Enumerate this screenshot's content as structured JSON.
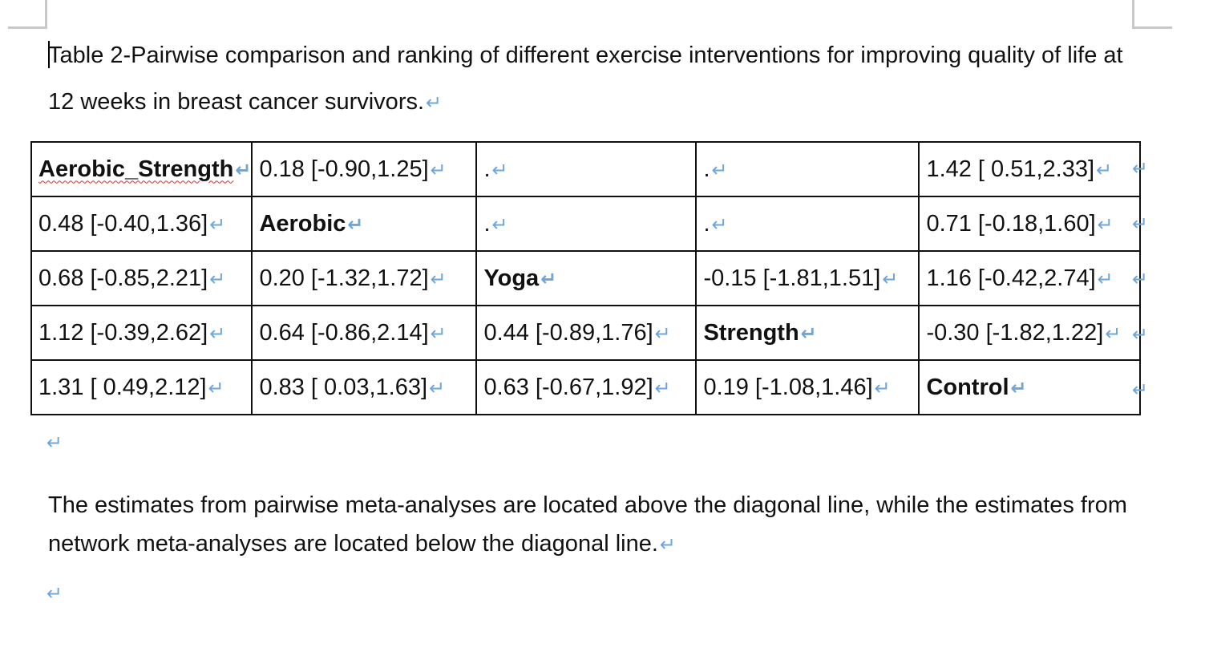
{
  "caption": {
    "text": "Table 2-Pairwise comparison and ranking of different exercise interventions for improving quality of life at 12 weeks in breast cancer survivors."
  },
  "paragraph_mark": "↵",
  "table": {
    "rows": [
      [
        "Aerobic_Strength",
        "0.18 [-0.90,1.25]",
        ".",
        ".",
        "1.42 [ 0.51,2.33]"
      ],
      [
        "0.48 [-0.40,1.36]",
        "Aerobic",
        ".",
        ".",
        "0.71 [-0.18,1.60]"
      ],
      [
        "0.68 [-0.85,2.21]",
        "0.20 [-1.32,1.72]",
        "Yoga",
        "-0.15 [-1.81,1.51]",
        "1.16 [-0.42,2.74]"
      ],
      [
        "1.12 [-0.39,2.62]",
        "0.64 [-0.86,2.14]",
        "0.44 [-0.89,1.76]",
        "Strength",
        "-0.30 [-1.82,1.22]"
      ],
      [
        "1.31 [ 0.49,2.12]",
        "0.83 [ 0.03,1.63]",
        "0.63 [-0.67,1.92]",
        "0.19 [-1.08,1.46]",
        "Control"
      ]
    ]
  },
  "footnote": {
    "text": "The estimates from pairwise meta-analyses are located above the diagonal line, while the estimates from network meta-analyses are located below the diagonal line."
  }
}
